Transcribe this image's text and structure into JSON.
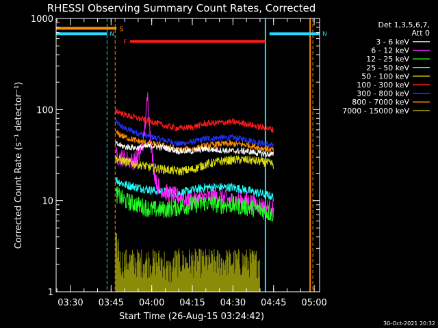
{
  "chart_data": {
    "type": "line",
    "title": "RHESSI Observing Summary Count Rates, Corrected",
    "xlabel": "Start Time (26-Aug-15 03:24:42)",
    "ylabel": "Corrected Count Rate (s⁻¹ detector⁻¹)",
    "y_scale": "log",
    "ylim": [
      1,
      1000
    ],
    "xlim": [
      "03:24:42",
      "05:02:00"
    ],
    "x_ticks": [
      "03:30",
      "03:45",
      "04:00",
      "04:15",
      "04:30",
      "04:45",
      "05:00"
    ],
    "y_ticks": [
      "1",
      "10",
      "100",
      "1000"
    ],
    "footer": "30-Oct-2021 20:32",
    "legend": {
      "placement": "right",
      "header_1": "Det 1,3,5,6,7,",
      "header_2": "Att 0"
    },
    "flags": [
      {
        "label": "S",
        "color": "#ff8c00",
        "level": 780,
        "start": "03:24:42",
        "end": "03:47:00"
      },
      {
        "label": "N",
        "color": "#22ddff",
        "level": 680,
        "start": "03:24:42",
        "end": "03:43:30"
      },
      {
        "label": "N",
        "color": "#22ddff",
        "level": 680,
        "start": "04:43:30",
        "end": "05:02:00"
      },
      {
        "label": "F",
        "color": "#ff1a1a",
        "level": 560,
        "start": "03:52:00",
        "end": "04:42:00"
      }
    ],
    "markers": [
      {
        "time": "03:43:30",
        "color": "#22ddff",
        "style": "dashed"
      },
      {
        "time": "03:46:30",
        "color": "#ff8c00",
        "style": "dashed"
      },
      {
        "time": "04:42:00",
        "color": "#22ddff",
        "style": "solid"
      },
      {
        "time": "04:58:30",
        "color": "#ff8c00",
        "style": "solid"
      },
      {
        "time": "04:59:30",
        "color": "#ff8c00",
        "style": "dashed"
      }
    ],
    "series": [
      {
        "name": "3 - 6 keV",
        "color": "#ffffff",
        "points": [
          [
            "03:46:40",
            42
          ],
          [
            "03:50:00",
            39
          ],
          [
            "03:55:00",
            38
          ],
          [
            "04:00:00",
            40
          ],
          [
            "04:05:00",
            38
          ],
          [
            "04:10:00",
            35
          ],
          [
            "04:15:00",
            35
          ],
          [
            "04:20:00",
            37
          ],
          [
            "04:25:00",
            36
          ],
          [
            "04:30:00",
            35
          ],
          [
            "04:35:00",
            35
          ],
          [
            "04:40:00",
            33
          ],
          [
            "04:45:00",
            32
          ]
        ]
      },
      {
        "name": "6 - 12 keV",
        "color": "#ff22ff",
        "points": [
          [
            "03:46:40",
            31
          ],
          [
            "03:50:00",
            29
          ],
          [
            "03:53:00",
            27
          ],
          [
            "03:55:00",
            30
          ],
          [
            "03:57:00",
            45
          ],
          [
            "03:58:30",
            140
          ],
          [
            "03:59:30",
            55
          ],
          [
            "04:00:30",
            25
          ],
          [
            "04:02:00",
            15
          ],
          [
            "04:04:00",
            13
          ],
          [
            "04:06:00",
            12
          ],
          [
            "04:10:00",
            11
          ],
          [
            "04:15:00",
            10
          ],
          [
            "04:20:00",
            11
          ],
          [
            "04:25:00",
            11
          ],
          [
            "04:30:00",
            10
          ],
          [
            "04:35:00",
            10
          ],
          [
            "04:40:00",
            9
          ],
          [
            "04:45:00",
            8
          ]
        ]
      },
      {
        "name": "12 - 25 keV",
        "color": "#22ff22",
        "points": [
          [
            "03:46:40",
            12
          ],
          [
            "03:50:00",
            10
          ],
          [
            "03:55:00",
            9
          ],
          [
            "04:00:00",
            8
          ],
          [
            "04:05:00",
            8
          ],
          [
            "04:10:00",
            8.5
          ],
          [
            "04:15:00",
            9
          ],
          [
            "04:20:00",
            9.5
          ],
          [
            "04:25:00",
            9
          ],
          [
            "04:30:00",
            9
          ],
          [
            "04:35:00",
            8.5
          ],
          [
            "04:40:00",
            8
          ],
          [
            "04:45:00",
            7
          ]
        ]
      },
      {
        "name": "25 - 50 keV",
        "color": "#22ffff",
        "points": [
          [
            "03:46:40",
            17
          ],
          [
            "03:50:00",
            15
          ],
          [
            "03:55:00",
            14
          ],
          [
            "04:00:00",
            13
          ],
          [
            "04:05:00",
            12.5
          ],
          [
            "04:10:00",
            12
          ],
          [
            "04:15:00",
            13
          ],
          [
            "04:20:00",
            14
          ],
          [
            "04:25:00",
            14
          ],
          [
            "04:30:00",
            14
          ],
          [
            "04:35:00",
            13
          ],
          [
            "04:40:00",
            12
          ],
          [
            "04:45:00",
            11
          ]
        ]
      },
      {
        "name": "50 - 100 keV",
        "color": "#dddd11",
        "points": [
          [
            "03:46:40",
            29
          ],
          [
            "03:50:00",
            27
          ],
          [
            "03:55:00",
            25
          ],
          [
            "04:00:00",
            23
          ],
          [
            "04:05:00",
            22
          ],
          [
            "04:10:00",
            21
          ],
          [
            "04:15:00",
            22
          ],
          [
            "04:20:00",
            25
          ],
          [
            "04:25:00",
            27
          ],
          [
            "04:30:00",
            28
          ],
          [
            "04:35:00",
            28
          ],
          [
            "04:40:00",
            27
          ],
          [
            "04:45:00",
            25
          ]
        ]
      },
      {
        "name": "100 - 300 keV",
        "color": "#ff1a1a",
        "points": [
          [
            "03:46:40",
            98
          ],
          [
            "03:50:00",
            88
          ],
          [
            "03:55:00",
            80
          ],
          [
            "04:00:00",
            74
          ],
          [
            "04:05:00",
            66
          ],
          [
            "04:10:00",
            62
          ],
          [
            "04:15:00",
            64
          ],
          [
            "04:20:00",
            70
          ],
          [
            "04:25:00",
            72
          ],
          [
            "04:30:00",
            73
          ],
          [
            "04:35:00",
            70
          ],
          [
            "04:40:00",
            64
          ],
          [
            "04:45:00",
            60
          ]
        ]
      },
      {
        "name": "300 - 800 keV",
        "color": "#2233ff",
        "points": [
          [
            "03:46:40",
            73
          ],
          [
            "03:50:00",
            62
          ],
          [
            "03:55:00",
            55
          ],
          [
            "04:00:00",
            50
          ],
          [
            "04:05:00",
            46
          ],
          [
            "04:10:00",
            42
          ],
          [
            "04:15:00",
            44
          ],
          [
            "04:20:00",
            48
          ],
          [
            "04:25:00",
            49
          ],
          [
            "04:30:00",
            49
          ],
          [
            "04:35:00",
            47
          ],
          [
            "04:40:00",
            43
          ],
          [
            "04:45:00",
            40
          ]
        ]
      },
      {
        "name": "800 - 7000 keV",
        "color": "#ff8c00",
        "points": [
          [
            "03:46:40",
            56
          ],
          [
            "03:50:00",
            50
          ],
          [
            "03:55:00",
            45
          ],
          [
            "04:00:00",
            42
          ],
          [
            "04:05:00",
            40
          ],
          [
            "04:10:00",
            36
          ],
          [
            "04:15:00",
            37
          ],
          [
            "04:20:00",
            40
          ],
          [
            "04:25:00",
            42
          ],
          [
            "04:30:00",
            42
          ],
          [
            "04:35:00",
            41
          ],
          [
            "04:40:00",
            38
          ],
          [
            "04:45:00",
            36
          ]
        ]
      },
      {
        "name": "7000 - 15000 keV",
        "color": "#8b8b0a",
        "points": [
          [
            "03:46:40",
            3
          ],
          [
            "03:48:00",
            2
          ],
          [
            "03:55:00",
            2
          ],
          [
            "04:05:00",
            1.6
          ],
          [
            "04:08:00",
            2
          ],
          [
            "04:15:00",
            2
          ],
          [
            "04:25:00",
            2
          ],
          [
            "04:35:00",
            2
          ],
          [
            "04:40:00",
            2
          ]
        ]
      }
    ]
  }
}
